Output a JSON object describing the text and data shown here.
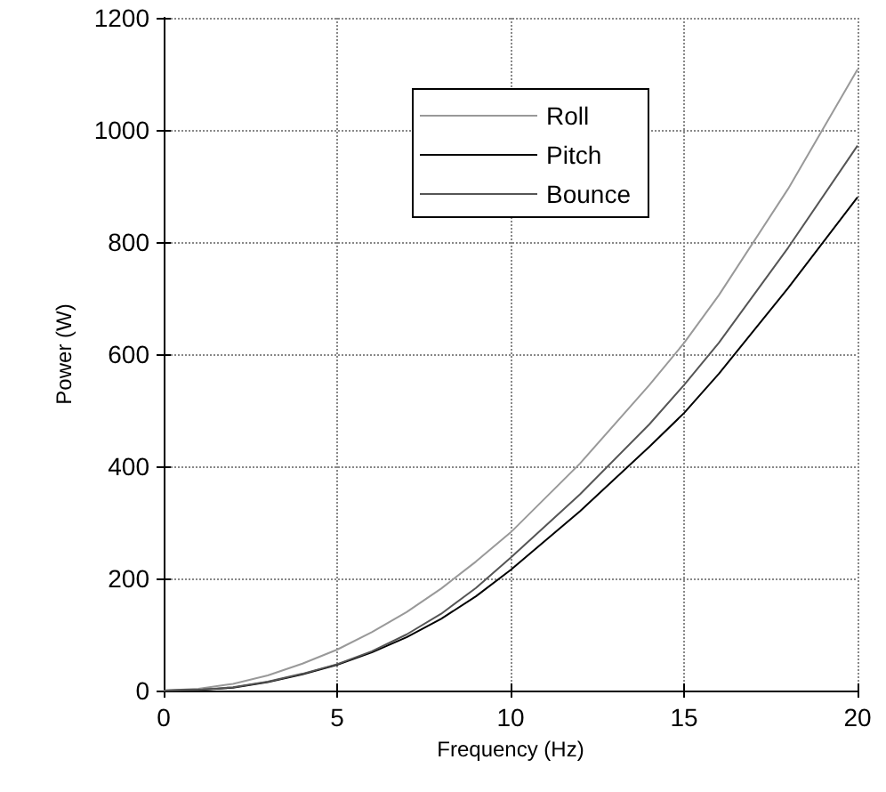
{
  "chart_data": {
    "type": "line",
    "xlabel": "Frequency (Hz)",
    "ylabel": "Power (W)",
    "xlim": [
      0,
      20
    ],
    "xticks": [
      0,
      5,
      10,
      15,
      20
    ],
    "ylim": [
      0,
      1200
    ],
    "yticks": [
      0,
      200,
      400,
      600,
      800,
      1000,
      1200
    ],
    "grid": true,
    "legend": "top",
    "marker": "none",
    "line_style": "solid",
    "series": [
      {
        "name": "Roll",
        "color": "#999999",
        "x": [
          0,
          1,
          2,
          3,
          4,
          5,
          6,
          7,
          8,
          9,
          10,
          12,
          14,
          15,
          16,
          18,
          20
        ],
        "values": [
          0,
          3,
          12,
          27,
          48,
          73,
          104,
          140,
          182,
          230,
          282,
          405,
          545,
          620,
          705,
          895,
          1108
        ]
      },
      {
        "name": "Pitch",
        "color": "#000000",
        "x": [
          0,
          1,
          2,
          3,
          4,
          5,
          6,
          7,
          8,
          9,
          10,
          12,
          14,
          15,
          16,
          18,
          20
        ],
        "values": [
          0,
          1,
          5,
          15,
          29,
          46,
          68,
          95,
          128,
          168,
          215,
          320,
          435,
          495,
          565,
          718,
          880
        ]
      },
      {
        "name": "Bounce",
        "color": "#555555",
        "x": [
          0,
          1,
          2,
          3,
          4,
          5,
          6,
          7,
          8,
          9,
          10,
          12,
          14,
          15,
          16,
          18,
          20
        ],
        "values": [
          0,
          1,
          6,
          16,
          30,
          47,
          70,
          100,
          137,
          183,
          237,
          350,
          475,
          545,
          620,
          790,
          972
        ]
      }
    ]
  }
}
